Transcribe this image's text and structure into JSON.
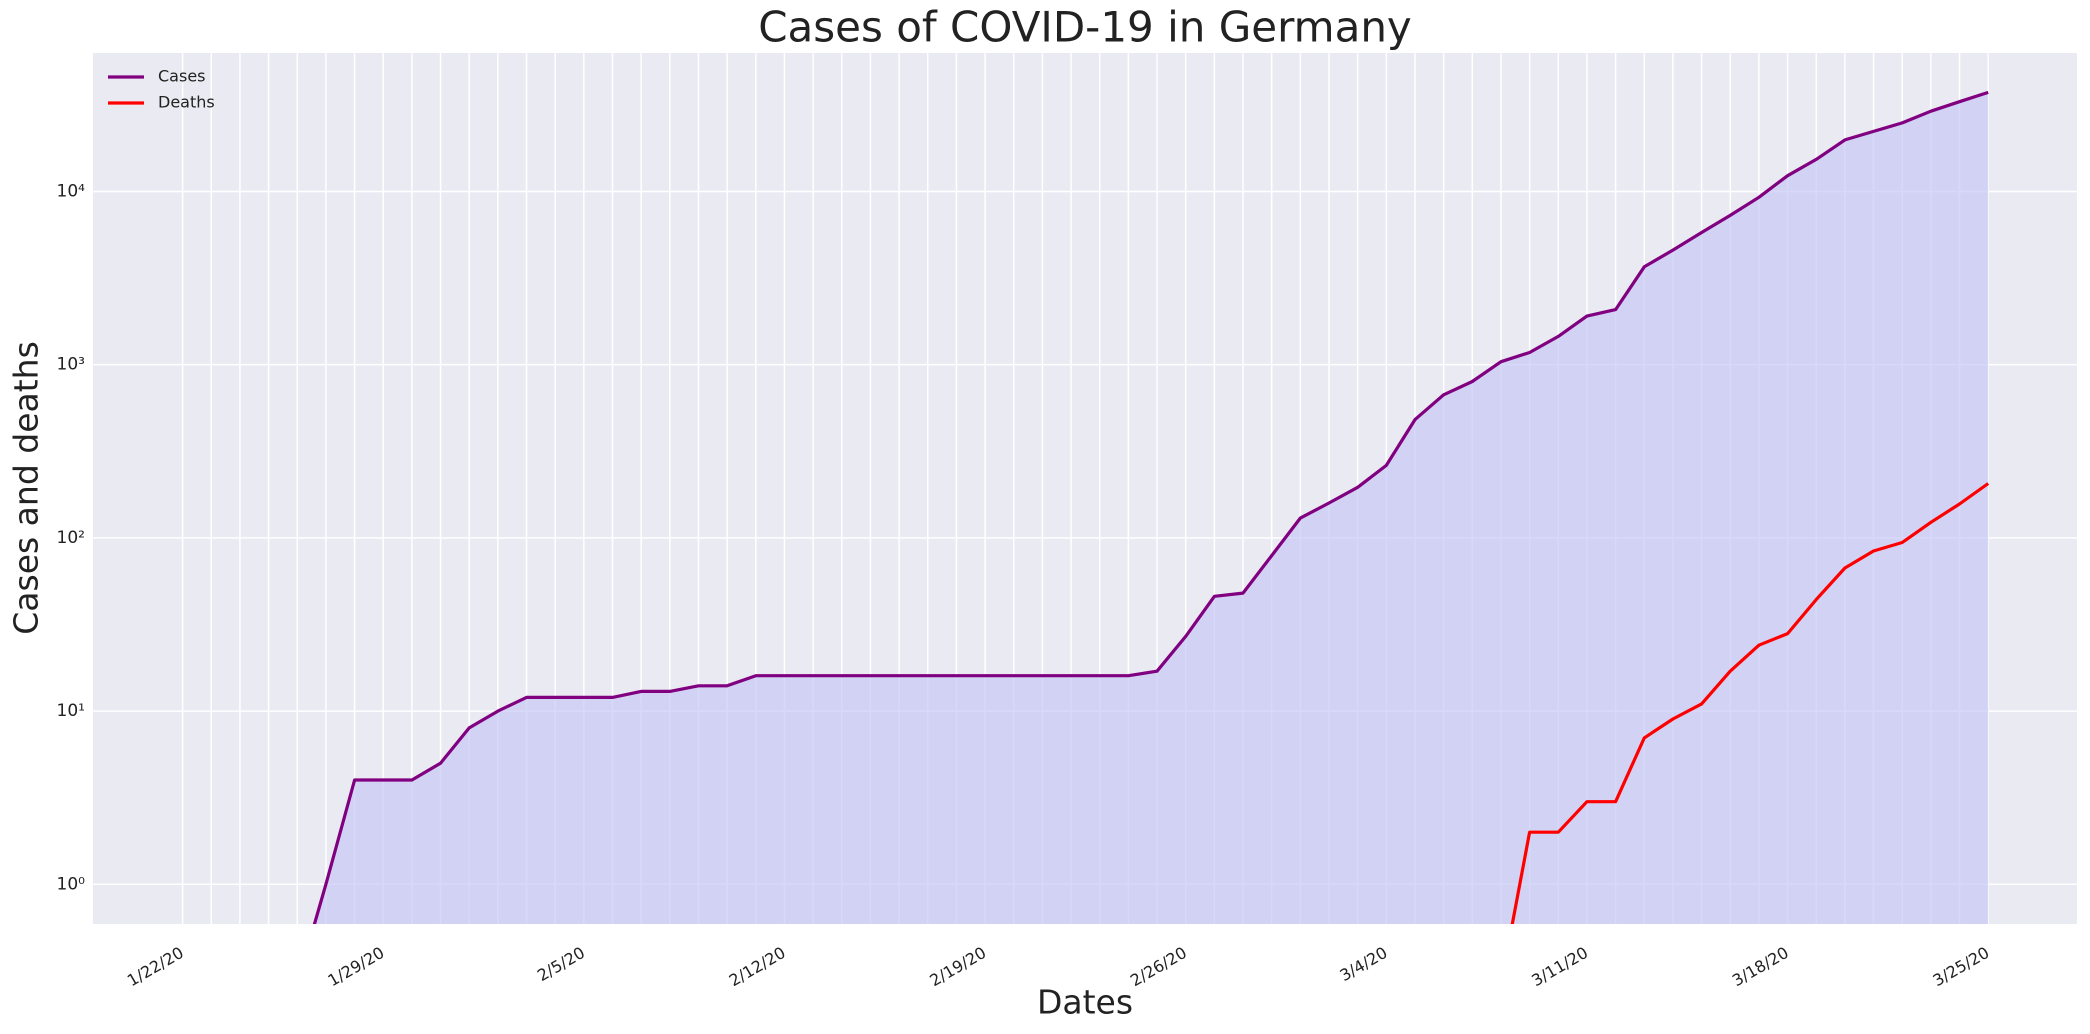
{
  "chart_data": {
    "type": "line",
    "title": "Cases of COVID-19 in Germany",
    "x_label": "Dates",
    "y_label": "Cases and deaths",
    "categories": [
      "1/22/20",
      null,
      null,
      null,
      null,
      null,
      null,
      "1/29/20",
      null,
      null,
      null,
      null,
      null,
      null,
      "2/5/20",
      null,
      null,
      null,
      null,
      null,
      null,
      "2/12/20",
      null,
      null,
      null,
      null,
      null,
      null,
      "2/19/20",
      null,
      null,
      null,
      null,
      null,
      null,
      "2/26/20",
      null,
      null,
      null,
      null,
      null,
      null,
      "3/4/20",
      null,
      null,
      null,
      null,
      null,
      null,
      "3/11/20",
      null,
      null,
      null,
      null,
      null,
      null,
      "3/18/20",
      null,
      null,
      null,
      null,
      null,
      null,
      "3/25/20"
    ],
    "series": [
      {
        "name": "Cases",
        "color": "#800080",
        "fill_color": "#c8c8f5",
        "values": [
          0,
          0,
          0,
          0,
          0,
          1,
          4,
          4,
          4,
          5,
          8,
          10,
          12,
          12,
          12,
          12,
          13,
          13,
          14,
          14,
          16,
          16,
          16,
          16,
          16,
          16,
          16,
          16,
          16,
          16,
          16,
          16,
          16,
          16,
          17,
          27,
          46,
          48,
          79,
          130,
          159,
          196,
          262,
          482,
          670,
          799,
          1040,
          1176,
          1457,
          1908,
          2078,
          3675,
          4585,
          5795,
          7272,
          9257,
          12327,
          15320,
          19848,
          22213,
          24873,
          29056,
          32986,
          37323
        ]
      },
      {
        "name": "Deaths",
        "color": "#ff0000",
        "values": [
          0,
          0,
          0,
          0,
          0,
          0,
          0,
          0,
          0,
          0,
          0,
          0,
          0,
          0,
          0,
          0,
          0,
          0,
          0,
          0,
          0,
          0,
          0,
          0,
          0,
          0,
          0,
          0,
          0,
          0,
          0,
          0,
          0,
          0,
          0,
          0,
          0,
          0,
          0,
          0,
          0,
          0,
          0,
          0,
          0,
          0,
          0,
          2,
          2,
          3,
          3,
          7,
          9,
          11,
          17,
          24,
          28,
          44,
          67,
          84,
          94,
          123,
          157,
          206
        ]
      }
    ],
    "ylim": [
      0.59,
      63000
    ],
    "y_log": true,
    "yticks": [
      {
        "value": 1,
        "label": "10⁰"
      },
      {
        "value": 10,
        "label": "10¹"
      },
      {
        "value": 100,
        "label": "10²"
      },
      {
        "value": 1000,
        "label": "10³"
      },
      {
        "value": 10000,
        "label": "10⁴"
      }
    ],
    "grid": true,
    "legend": "upper left"
  }
}
